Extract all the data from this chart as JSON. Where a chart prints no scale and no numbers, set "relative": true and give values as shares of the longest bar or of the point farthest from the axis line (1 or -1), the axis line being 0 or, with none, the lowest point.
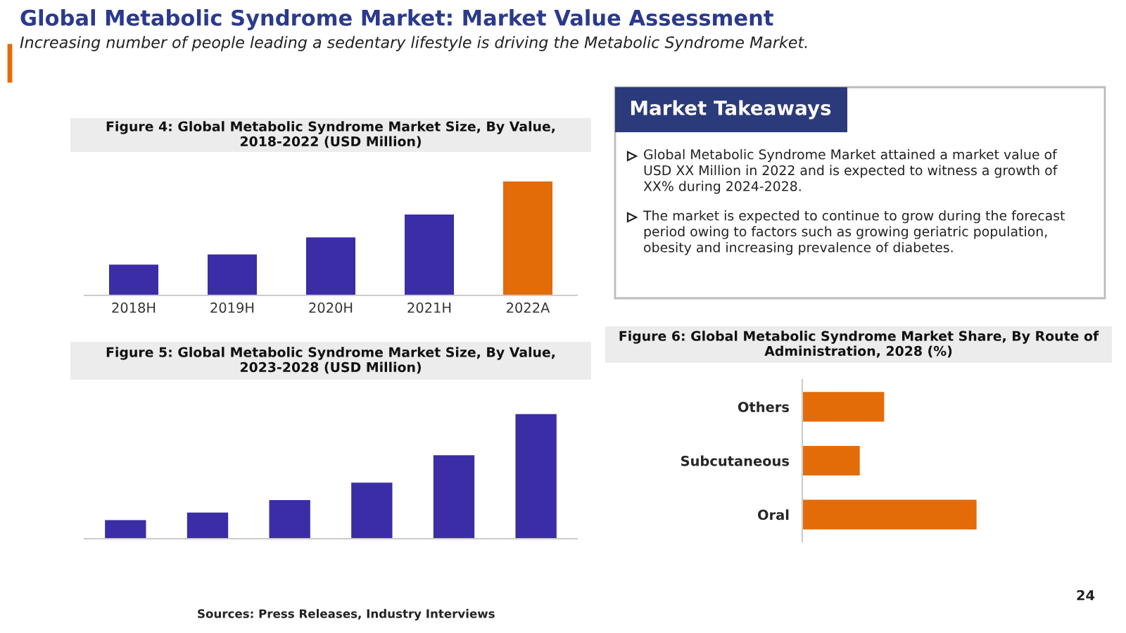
{
  "chart_data": [
    {
      "type": "other",
      "title": "Global Metabolic Syndrome Market: Market Value Assessment",
      "subtitle": "Increasing number of people leading a sedentary lifestyle is driving the Metabolic Syndrome Market.",
      "annotations": [
        "Sources: Press Releases, Industry Interviews",
        "24"
      ]
    },
    {
      "type": "bar",
      "title": "Figure 4: Global Metabolic Syndrome Market Size, By Value, 2018-2022 (USD Million)",
      "relative": true,
      "categories": [
        "2018H",
        "2019H",
        "2020H",
        "2021H",
        "2022A"
      ],
      "values": [
        0.27,
        0.36,
        0.51,
        0.71,
        1
      ],
      "colors": [
        "#3a2da6",
        "#3a2da6",
        "#3a2da6",
        "#3a2da6",
        "#e36c09"
      ]
    },
    {
      "type": "other",
      "title": "Market Takeaways",
      "annotations": [
        "Global Metabolic Syndrome Market attained a market value of USD XX Million in 2022 and is expected to witness a growth of XX% during 2024-2028.",
        "The market is expected to continue to grow during the forecast period owing to factors such as growing geriatric population, obesity and increasing prevalence of diabetes."
      ]
    },
    {
      "type": "bar",
      "title": "Figure 5: Global Metabolic Syndrome Market Size, By Value, 2023-2028 (USD Million)",
      "relative": true,
      "categories": [
        null,
        null,
        null,
        null,
        null,
        null
      ],
      "values": [
        0.15,
        0.21,
        0.31,
        0.45,
        0.67,
        1
      ],
      "color": "#3a2da6"
    },
    {
      "type": "bar",
      "orientation": "horizontal",
      "title": "Figure 6: Global Metabolic Syndrome Market Share, By Route of Administration, 2028 (%)",
      "relative": true,
      "categories": [
        "Others",
        "Subcutaneous",
        "Oral"
      ],
      "values": [
        0.47,
        0.33,
        1
      ],
      "color": "#e36c09"
    }
  ]
}
